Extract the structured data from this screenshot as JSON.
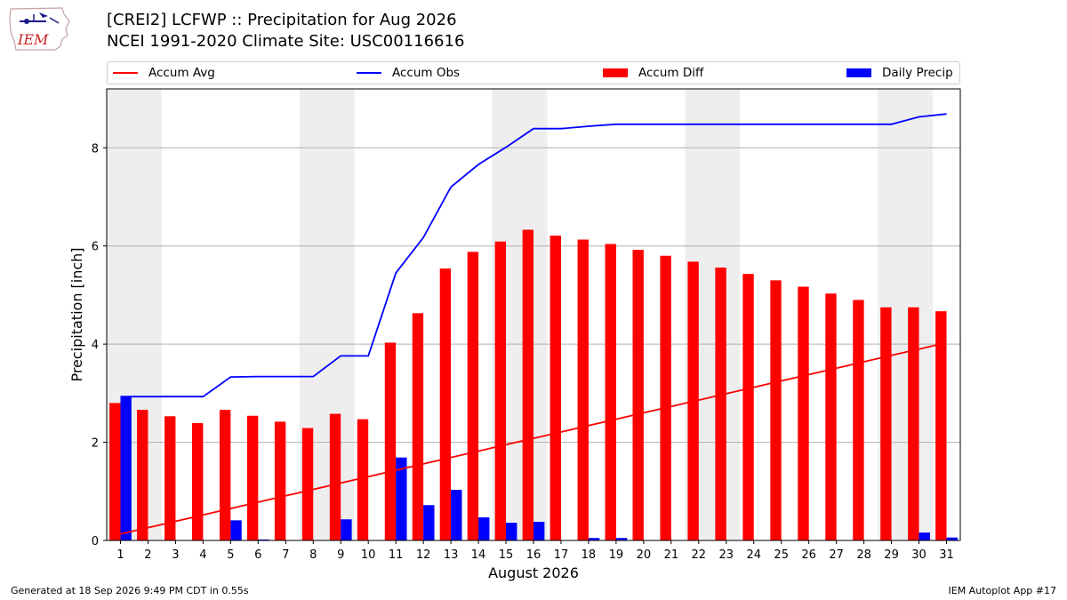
{
  "header": {
    "title_line1": "[CREI2] LCFWP :: Precipitation for Aug 2026",
    "title_line2": "NCEI 1991-2020 Climate Site: USC00116616"
  },
  "logo": {
    "text": "IEM",
    "icon": "iem-iowa-map-logo"
  },
  "legend": {
    "items": [
      {
        "label": "Accum Avg",
        "color": "#ff0000",
        "kind": "line"
      },
      {
        "label": "Accum Obs",
        "color": "#0000ff",
        "kind": "line"
      },
      {
        "label": "Accum Diff",
        "color": "#ff0000",
        "kind": "bar"
      },
      {
        "label": "Daily Precip",
        "color": "#0000ff",
        "kind": "bar"
      }
    ],
    "placement": "top (above plot, full width)"
  },
  "chart_data": {
    "type": "bar",
    "title": "[CREI2] LCFWP :: Precipitation for Aug 2026",
    "subtitle": "NCEI 1991-2020 Climate Site: USC00116616",
    "xlabel": "August 2026",
    "ylabel": "Precipitation [inch]",
    "x": [
      1,
      2,
      3,
      4,
      5,
      6,
      7,
      8,
      9,
      10,
      11,
      12,
      13,
      14,
      15,
      16,
      17,
      18,
      19,
      20,
      21,
      22,
      23,
      24,
      25,
      26,
      27,
      28,
      29,
      30,
      31
    ],
    "x_tick_labels": [
      "1",
      "2",
      "3",
      "4",
      "5",
      "6",
      "7",
      "8",
      "9",
      "10",
      "11",
      "12",
      "13",
      "14",
      "15",
      "16",
      "17",
      "18",
      "19",
      "20",
      "21",
      "22",
      "23",
      "24",
      "25",
      "26",
      "27",
      "28",
      "29",
      "30",
      "31"
    ],
    "ylim": [
      0,
      9.2
    ],
    "y_ticks": [
      0,
      2,
      4,
      6,
      8
    ],
    "grid": "horizontal at y ticks",
    "shaded_weekends": [
      [
        1,
        2
      ],
      [
        8,
        9
      ],
      [
        15,
        16
      ],
      [
        22,
        23
      ],
      [
        29,
        30
      ]
    ],
    "series": [
      {
        "name": "Accum Avg",
        "type": "line",
        "color": "#ff0000",
        "values": [
          0.13,
          0.26,
          0.39,
          0.52,
          0.65,
          0.78,
          0.91,
          1.04,
          1.17,
          1.3,
          1.43,
          1.56,
          1.69,
          1.82,
          1.95,
          2.08,
          2.21,
          2.34,
          2.47,
          2.6,
          2.73,
          2.86,
          2.99,
          3.12,
          3.25,
          3.38,
          3.51,
          3.64,
          3.77,
          3.9,
          4.03
        ]
      },
      {
        "name": "Accum Obs",
        "type": "line",
        "color": "#0000ff",
        "values": [
          2.93,
          2.93,
          2.93,
          2.93,
          3.33,
          3.34,
          3.34,
          3.34,
          3.76,
          3.76,
          5.45,
          6.17,
          7.2,
          7.66,
          8.01,
          8.39,
          8.39,
          8.44,
          8.48,
          8.48,
          8.48,
          8.48,
          8.48,
          8.48,
          8.48,
          8.48,
          8.48,
          8.48,
          8.48,
          8.63,
          8.69
        ]
      },
      {
        "name": "Accum Diff",
        "type": "bar",
        "color": "#ff0000",
        "values": [
          2.8,
          2.66,
          2.53,
          2.39,
          2.66,
          2.54,
          2.42,
          2.29,
          2.58,
          2.47,
          4.03,
          4.63,
          5.54,
          5.88,
          6.09,
          6.33,
          6.21,
          6.13,
          6.04,
          5.92,
          5.8,
          5.68,
          5.56,
          5.43,
          5.3,
          5.17,
          5.03,
          4.9,
          4.75,
          4.75,
          4.67
        ]
      },
      {
        "name": "Daily Precip",
        "type": "bar",
        "color": "#0000ff",
        "values": [
          2.93,
          0,
          0,
          0,
          0.41,
          0.02,
          0,
          0,
          0.43,
          0,
          1.69,
          0.72,
          1.03,
          0.47,
          0.36,
          0.38,
          0,
          0.05,
          0.05,
          0,
          0,
          0,
          0,
          0,
          0,
          0,
          0,
          0,
          0,
          0.16,
          0.06
        ]
      }
    ]
  },
  "footer": {
    "left": "Generated at 18 Sep 2026 9:49 PM CDT in 0.55s",
    "right": "IEM Autoplot App #17"
  }
}
